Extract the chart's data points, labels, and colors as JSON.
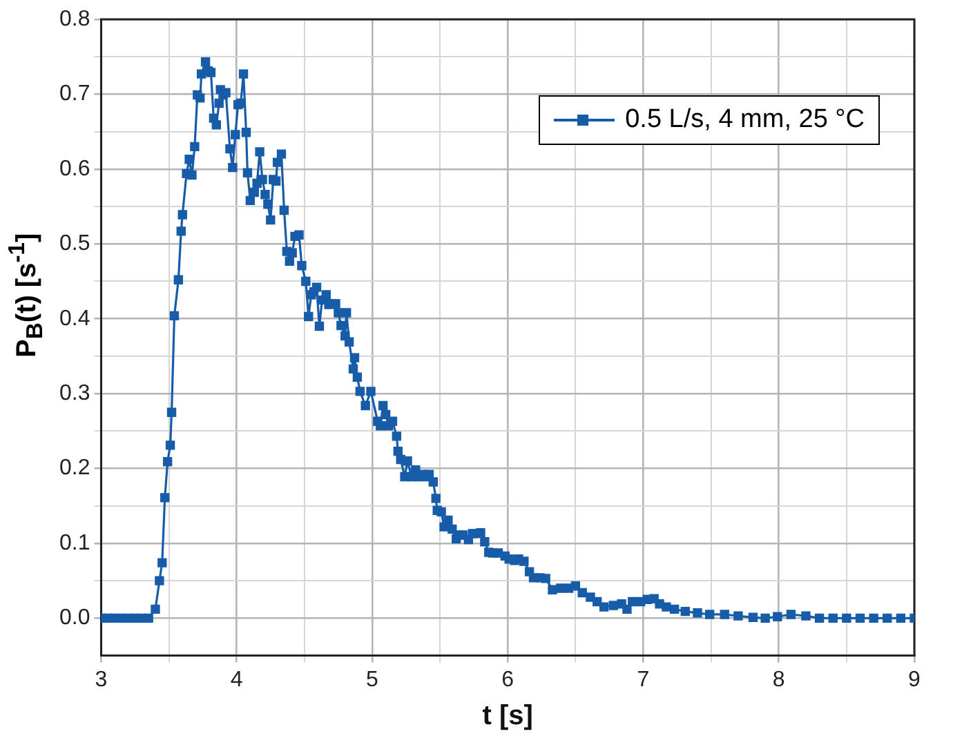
{
  "chart_data": {
    "type": "line",
    "xlabel": "t [s]",
    "ylabel": "P$_{B}$(t) [s$^{-1}$]",
    "marker": "square",
    "grid": true,
    "legend": "top right",
    "xlim": [
      3,
      9
    ],
    "ylim": [
      -0.05,
      0.8
    ],
    "xticks": [
      3,
      {
        "value": 3.5,
        "label": null
      },
      4,
      {
        "value": 4.5,
        "label": null
      },
      5,
      {
        "value": 5.5,
        "label": null
      },
      6,
      {
        "value": 6.5,
        "label": null
      },
      7,
      {
        "value": 7.5,
        "label": null
      },
      8,
      {
        "value": 8.5,
        "label": null
      },
      9
    ],
    "yticks": [
      {
        "value": 0,
        "label": "0.0"
      },
      {
        "value": 0.05,
        "label": null
      },
      0.1,
      {
        "value": 0.15,
        "label": null
      },
      0.2,
      {
        "value": 0.25,
        "label": null
      },
      0.3,
      {
        "value": 0.35,
        "label": null
      },
      0.4,
      {
        "value": 0.45,
        "label": null
      },
      0.5,
      {
        "value": 0.55,
        "label": null
      },
      0.6,
      {
        "value": 0.65,
        "label": null
      },
      0.7,
      {
        "value": 0.75,
        "label": null
      },
      0.8
    ],
    "series": [
      {
        "name": "0.5 L/s, 4 mm, 25 °C",
        "color": "#175ca8",
        "x": [
          3.0,
          3.05,
          3.1,
          3.15,
          3.2,
          3.25,
          3.3,
          3.35,
          3.4,
          3.43,
          3.45,
          3.47,
          3.49,
          3.51,
          3.52,
          3.54,
          3.57,
          3.59,
          3.6,
          3.63,
          3.65,
          3.67,
          3.69,
          3.71,
          3.73,
          3.74,
          3.77,
          3.79,
          3.81,
          3.83,
          3.85,
          3.87,
          3.88,
          3.9,
          3.92,
          3.95,
          3.97,
          3.99,
          4.01,
          4.03,
          4.05,
          4.07,
          4.08,
          4.1,
          4.13,
          4.15,
          4.17,
          4.19,
          4.21,
          4.23,
          4.25,
          4.27,
          4.29,
          4.3,
          4.33,
          4.35,
          4.37,
          4.39,
          4.41,
          4.43,
          4.46,
          4.48,
          4.51,
          4.53,
          4.55,
          4.57,
          4.59,
          4.61,
          4.63,
          4.66,
          4.68,
          4.7,
          4.73,
          4.75,
          4.77,
          4.8,
          4.81,
          4.83,
          4.86,
          4.87,
          4.89,
          4.91,
          4.95,
          4.99,
          5.04,
          5.06,
          5.08,
          5.1,
          5.12,
          5.15,
          5.18,
          5.19,
          5.21,
          5.24,
          5.26,
          5.29,
          5.32,
          5.34,
          5.37,
          5.4,
          5.42,
          5.45,
          5.47,
          5.48,
          5.51,
          5.53,
          5.56,
          5.59,
          5.62,
          5.64,
          5.67,
          5.71,
          5.74,
          5.76,
          5.8,
          5.83,
          5.86,
          5.89,
          5.93,
          5.98,
          6.01,
          6.05,
          6.08,
          6.12,
          6.16,
          6.19,
          6.24,
          6.28,
          6.33,
          6.39,
          6.45,
          6.5,
          6.55,
          6.61,
          6.66,
          6.71,
          6.78,
          6.84,
          6.88,
          6.92,
          6.98,
          7.03,
          7.08,
          7.12,
          7.17,
          7.23,
          7.31,
          7.4,
          7.49,
          7.6,
          7.7,
          7.81,
          7.9,
          7.99,
          8.09,
          8.2,
          8.3,
          8.4,
          8.5,
          8.6,
          8.7,
          8.8,
          8.9,
          9.0
        ],
        "values": [
          0,
          0,
          0,
          0,
          0,
          0,
          0,
          0,
          0.012,
          0.05,
          0.074,
          0.161,
          0.209,
          0.231,
          0.275,
          0.404,
          0.452,
          0.517,
          0.539,
          0.594,
          0.613,
          0.592,
          0.63,
          0.699,
          0.695,
          0.727,
          0.743,
          0.731,
          0.729,
          0.668,
          0.659,
          0.688,
          0.706,
          0.699,
          0.702,
          0.627,
          0.602,
          0.646,
          0.686,
          0.688,
          0.727,
          0.649,
          0.595,
          0.558,
          0.569,
          0.581,
          0.623,
          0.586,
          0.566,
          0.553,
          0.532,
          0.586,
          0.584,
          0.609,
          0.62,
          0.545,
          0.49,
          0.477,
          0.488,
          0.51,
          0.512,
          0.471,
          0.45,
          0.403,
          0.432,
          0.436,
          0.442,
          0.39,
          0.425,
          0.432,
          0.419,
          0.42,
          0.42,
          0.408,
          0.391,
          0.377,
          0.408,
          0.369,
          0.333,
          0.348,
          0.322,
          0.303,
          0.284,
          0.303,
          0.263,
          0.257,
          0.284,
          0.272,
          0.257,
          0.263,
          0.243,
          0.223,
          0.212,
          0.189,
          0.21,
          0.189,
          0.198,
          0.189,
          0.192,
          0.189,
          0.192,
          0.182,
          0.16,
          0.144,
          0.142,
          0.122,
          0.131,
          0.119,
          0.106,
          0.111,
          0.111,
          0.105,
          0.113,
          0.113,
          0.114,
          0.102,
          0.088,
          0.087,
          0.087,
          0.083,
          0.079,
          0.077,
          0.079,
          0.076,
          0.062,
          0.054,
          0.054,
          0.053,
          0.038,
          0.04,
          0.04,
          0.043,
          0.034,
          0.028,
          0.022,
          0.015,
          0.017,
          0.019,
          0.012,
          0.022,
          0.022,
          0.025,
          0.026,
          0.019,
          0.015,
          0.012,
          0.009,
          0.007,
          0.005,
          0.005,
          0.003,
          0.001,
          0,
          0.002,
          0.005,
          0.003,
          0,
          0,
          0,
          0,
          0,
          0,
          0,
          0
        ]
      }
    ]
  }
}
